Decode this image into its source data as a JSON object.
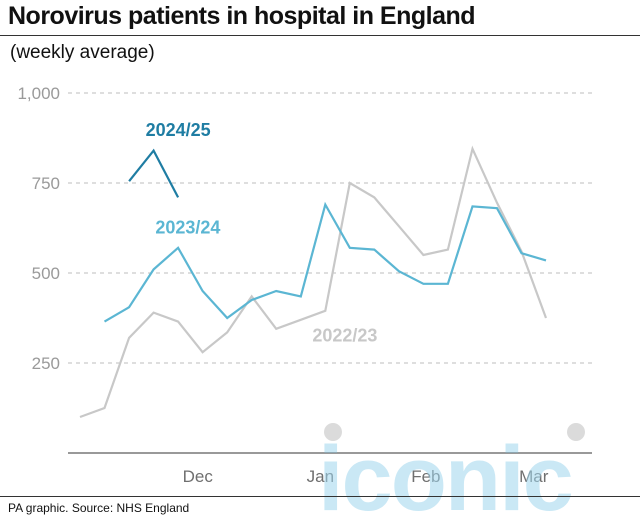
{
  "title": "Norovirus patients in hospital in England",
  "subtitle": "(weekly average)",
  "source": "PA graphic. Source: NHS England",
  "watermark": "iconic",
  "chart_data": {
    "type": "line",
    "ylim": [
      0,
      1000
    ],
    "xlim": [
      0,
      21
    ],
    "yticks": [
      {
        "value": 250,
        "label": "250"
      },
      {
        "value": 500,
        "label": "500"
      },
      {
        "value": 750,
        "label": "750"
      },
      {
        "value": 1000,
        "label": "1,000"
      }
    ],
    "xticks": [
      {
        "pos": 4.8,
        "label": "Dec"
      },
      {
        "pos": 9.8,
        "label": "Jan"
      },
      {
        "pos": 14.1,
        "label": "Feb"
      },
      {
        "pos": 18.5,
        "label": "Mar"
      }
    ],
    "grid": true,
    "series": [
      {
        "name": "2022/23",
        "color": "#c8c8c8",
        "label_pos": {
          "x": 10.8,
          "y": 310
        },
        "points": [
          {
            "x": 0,
            "y": 100
          },
          {
            "x": 1,
            "y": 125
          },
          {
            "x": 2,
            "y": 320
          },
          {
            "x": 3,
            "y": 390
          },
          {
            "x": 4,
            "y": 365
          },
          {
            "x": 5,
            "y": 280
          },
          {
            "x": 6,
            "y": 335
          },
          {
            "x": 7,
            "y": 435
          },
          {
            "x": 8,
            "y": 345
          },
          {
            "x": 9,
            "y": 370
          },
          {
            "x": 10,
            "y": 395
          },
          {
            "x": 11,
            "y": 750
          },
          {
            "x": 12,
            "y": 710
          },
          {
            "x": 13,
            "y": 630
          },
          {
            "x": 14,
            "y": 550
          },
          {
            "x": 15,
            "y": 565
          },
          {
            "x": 16,
            "y": 845
          },
          {
            "x": 17,
            "y": 695
          },
          {
            "x": 18,
            "y": 560
          },
          {
            "x": 19,
            "y": 375
          }
        ]
      },
      {
        "name": "2023/24",
        "color": "#5bb6d3",
        "label_pos": {
          "x": 4.4,
          "y": 610
        },
        "points": [
          {
            "x": 1,
            "y": 365
          },
          {
            "x": 2,
            "y": 405
          },
          {
            "x": 3,
            "y": 510
          },
          {
            "x": 4,
            "y": 570
          },
          {
            "x": 5,
            "y": 450
          },
          {
            "x": 6,
            "y": 375
          },
          {
            "x": 7,
            "y": 425
          },
          {
            "x": 8,
            "y": 450
          },
          {
            "x": 9,
            "y": 435
          },
          {
            "x": 10,
            "y": 690
          },
          {
            "x": 11,
            "y": 570
          },
          {
            "x": 12,
            "y": 565
          },
          {
            "x": 13,
            "y": 505
          },
          {
            "x": 14,
            "y": 470
          },
          {
            "x": 15,
            "y": 470
          },
          {
            "x": 16,
            "y": 685
          },
          {
            "x": 17,
            "y": 680
          },
          {
            "x": 18,
            "y": 555
          },
          {
            "x": 19,
            "y": 535
          }
        ]
      },
      {
        "name": "2024/25",
        "color": "#1f7da3",
        "label_pos": {
          "x": 4.0,
          "y": 880
        },
        "points": [
          {
            "x": 2,
            "y": 755
          },
          {
            "x": 3,
            "y": 840
          },
          {
            "x": 4,
            "y": 710
          }
        ]
      }
    ]
  }
}
